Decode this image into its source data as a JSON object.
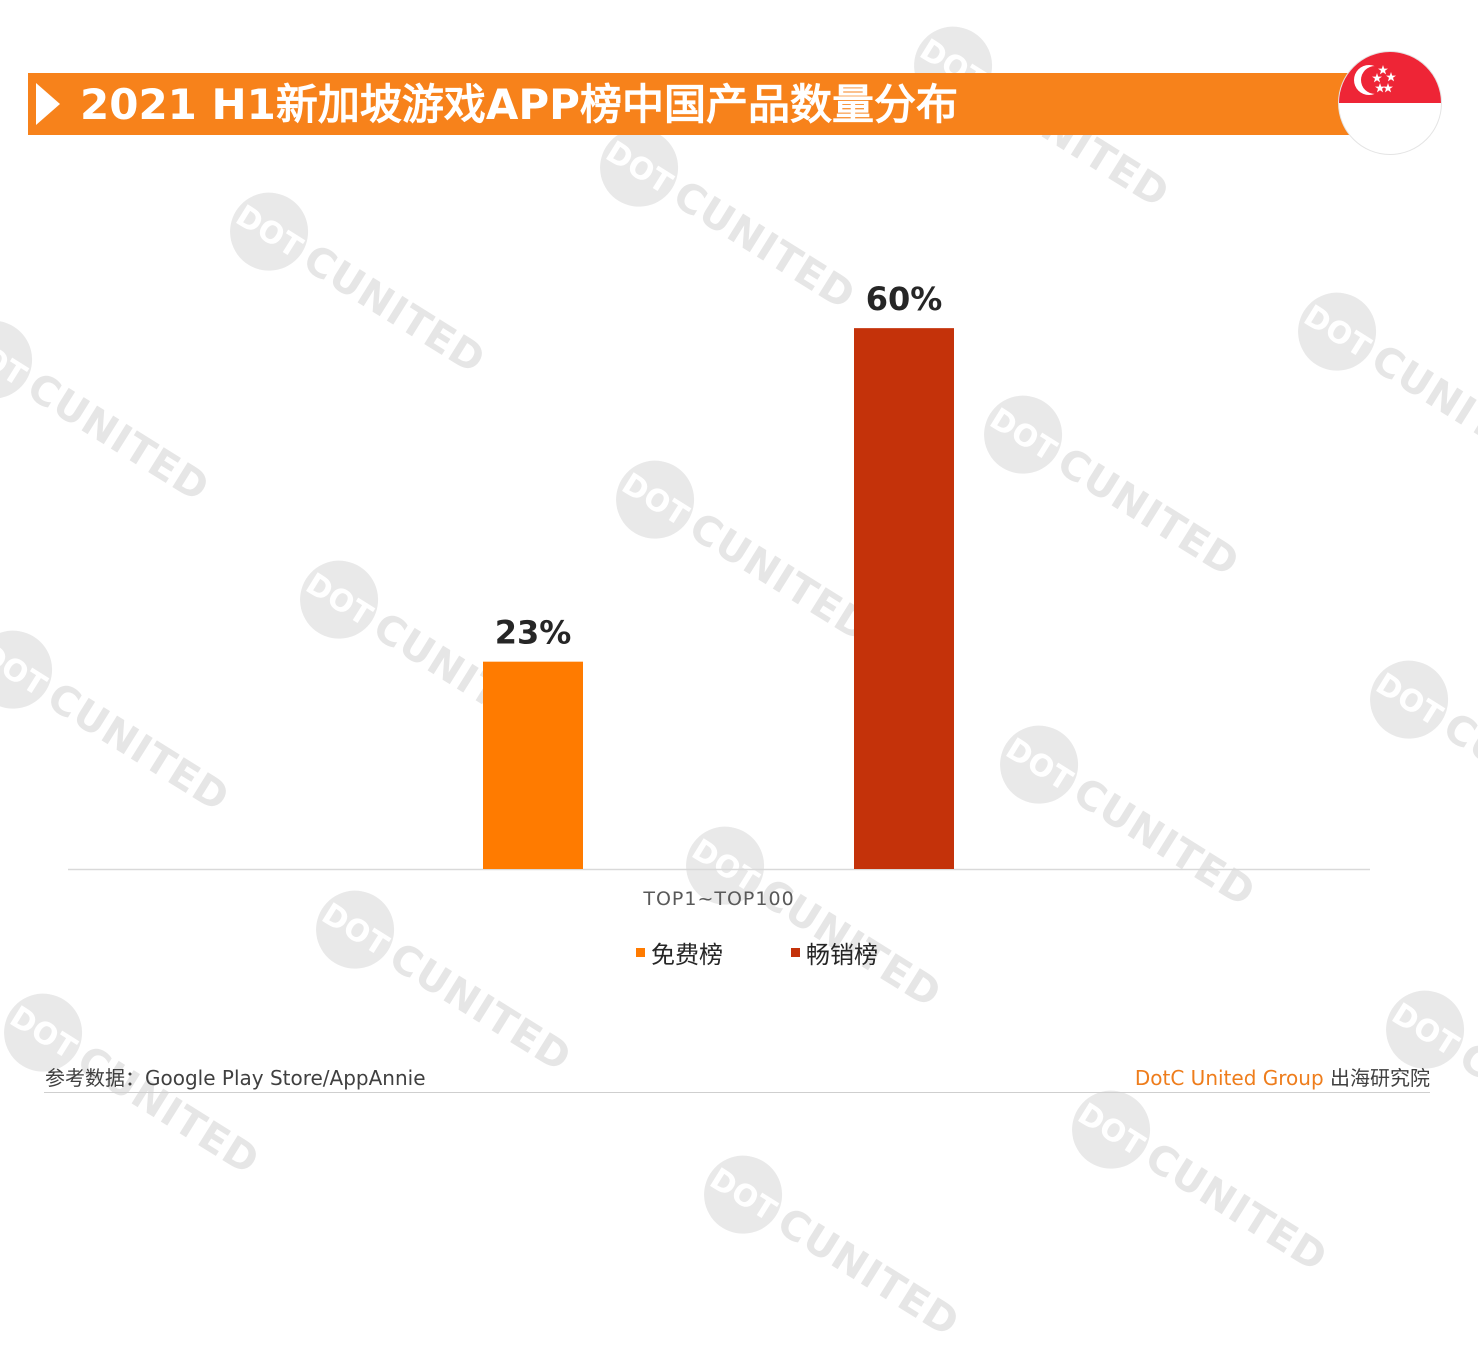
{
  "page": {
    "title": "2021 H1新加坡游戏APP榜中国产品数量分布",
    "source": "参考数据：Google Play Store/AppAnnie",
    "brand_en": "DotC United Group",
    "brand_cn": "出海研究院",
    "watermark_badge": "DOT",
    "watermark_word": "CUNITED"
  },
  "colors": {
    "banner": "#f7821b",
    "free": "#ff7b00",
    "grossing": "#c4320a",
    "flag_red": "#ee2536"
  },
  "chart_data": {
    "type": "bar",
    "categories": [
      "TOP1~TOP100"
    ],
    "series": [
      {
        "name": "免费榜",
        "values": [
          23
        ],
        "labels": [
          "23%"
        ],
        "color": "#ff7b00"
      },
      {
        "name": "畅销榜",
        "values": [
          60
        ],
        "labels": [
          "60%"
        ],
        "color": "#c4320a"
      }
    ],
    "title": "2021 H1新加坡游戏APP榜中国产品数量分布",
    "xlabel": "",
    "ylabel": "",
    "ylim": [
      0,
      70
    ],
    "unit": "%",
    "grid": false,
    "legend": "bottom"
  }
}
